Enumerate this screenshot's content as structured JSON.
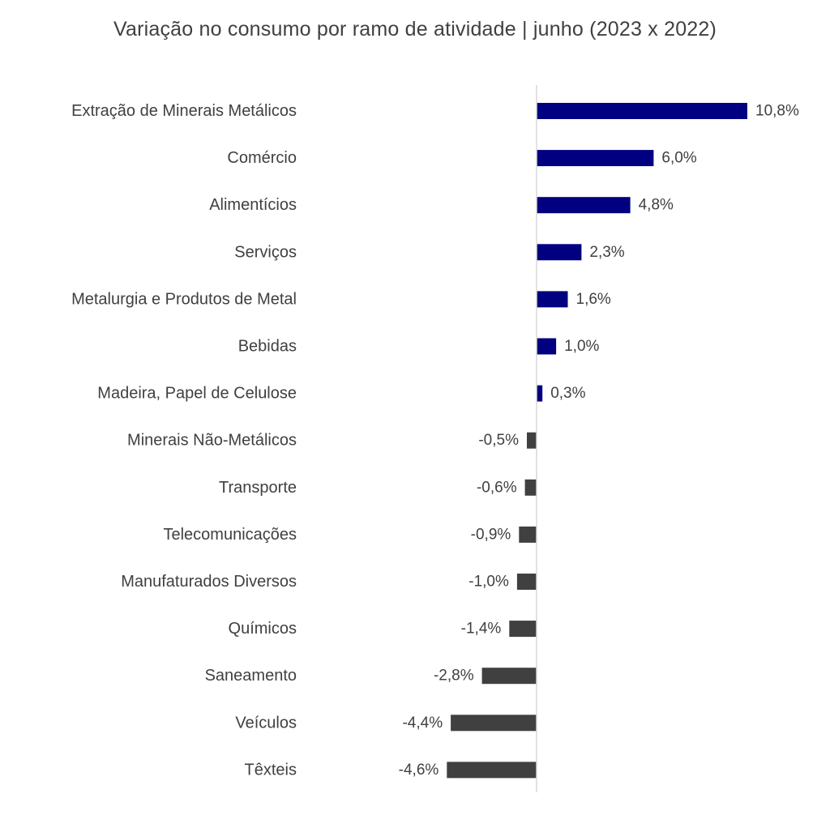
{
  "chart_data": {
    "type": "bar",
    "orientation": "horizontal",
    "title": "Variação no consumo por ramo de atividade | junho (2023 x 2022)",
    "categories": [
      "Extração de Minerais Metálicos",
      "Comércio",
      "Alimentícios",
      "Serviços",
      "Metalurgia e Produtos de Metal",
      "Bebidas",
      "Madeira, Papel de Celulose",
      "Minerais Não-Metálicos",
      "Transporte",
      "Telecomunicações",
      "Manufaturados Diversos",
      "Químicos",
      "Saneamento",
      "Veículos",
      "Têxteis"
    ],
    "values": [
      10.8,
      6.0,
      4.8,
      2.3,
      1.6,
      1.0,
      0.3,
      -0.5,
      -0.6,
      -0.9,
      -1.0,
      -1.4,
      -2.8,
      -4.4,
      -4.6
    ],
    "value_labels": [
      "10,8%",
      "6,0%",
      "4,8%",
      "2,3%",
      "1,6%",
      "1,0%",
      "0,3%",
      "-0,5%",
      "-0,6%",
      "-0,9%",
      "-1,0%",
      "-1,4%",
      "-2,8%",
      "-4,4%",
      "-4,6%"
    ],
    "unit": "%",
    "colors": {
      "positive": "#000080",
      "negative": "#404040",
      "axis": "#d9d9d9",
      "text": "#404040"
    },
    "xlabel": "",
    "ylabel": "",
    "grid": false,
    "legend": "none"
  }
}
